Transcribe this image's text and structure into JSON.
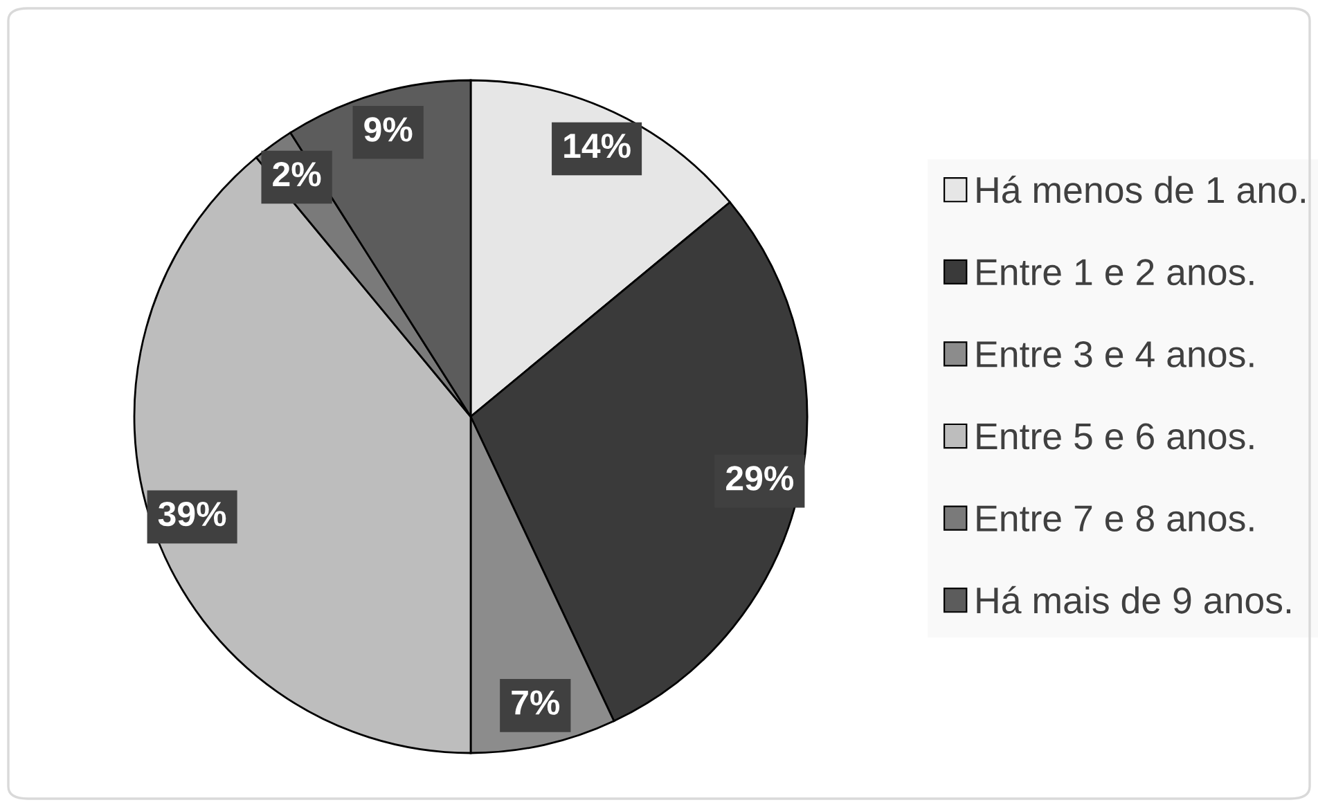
{
  "chart_data": {
    "type": "pie",
    "categories": [
      "Há menos de 1 ano.",
      "Entre 1 e 2 anos.",
      "Entre 3 e 4 anos.",
      "Entre 5 e 6 anos.",
      "Entre 7 e 8 anos.",
      "Há mais de 9 anos."
    ],
    "values": [
      14,
      29,
      7,
      39,
      2,
      9
    ],
    "colors": [
      "#e6e6e6",
      "#3a3a3a",
      "#8c8c8c",
      "#bdbdbd",
      "#7a7a7a",
      "#5c5c5c"
    ],
    "value_labels": [
      "14%",
      "29%",
      "7%",
      "39%",
      "2%",
      "9%"
    ],
    "legend": "right"
  }
}
